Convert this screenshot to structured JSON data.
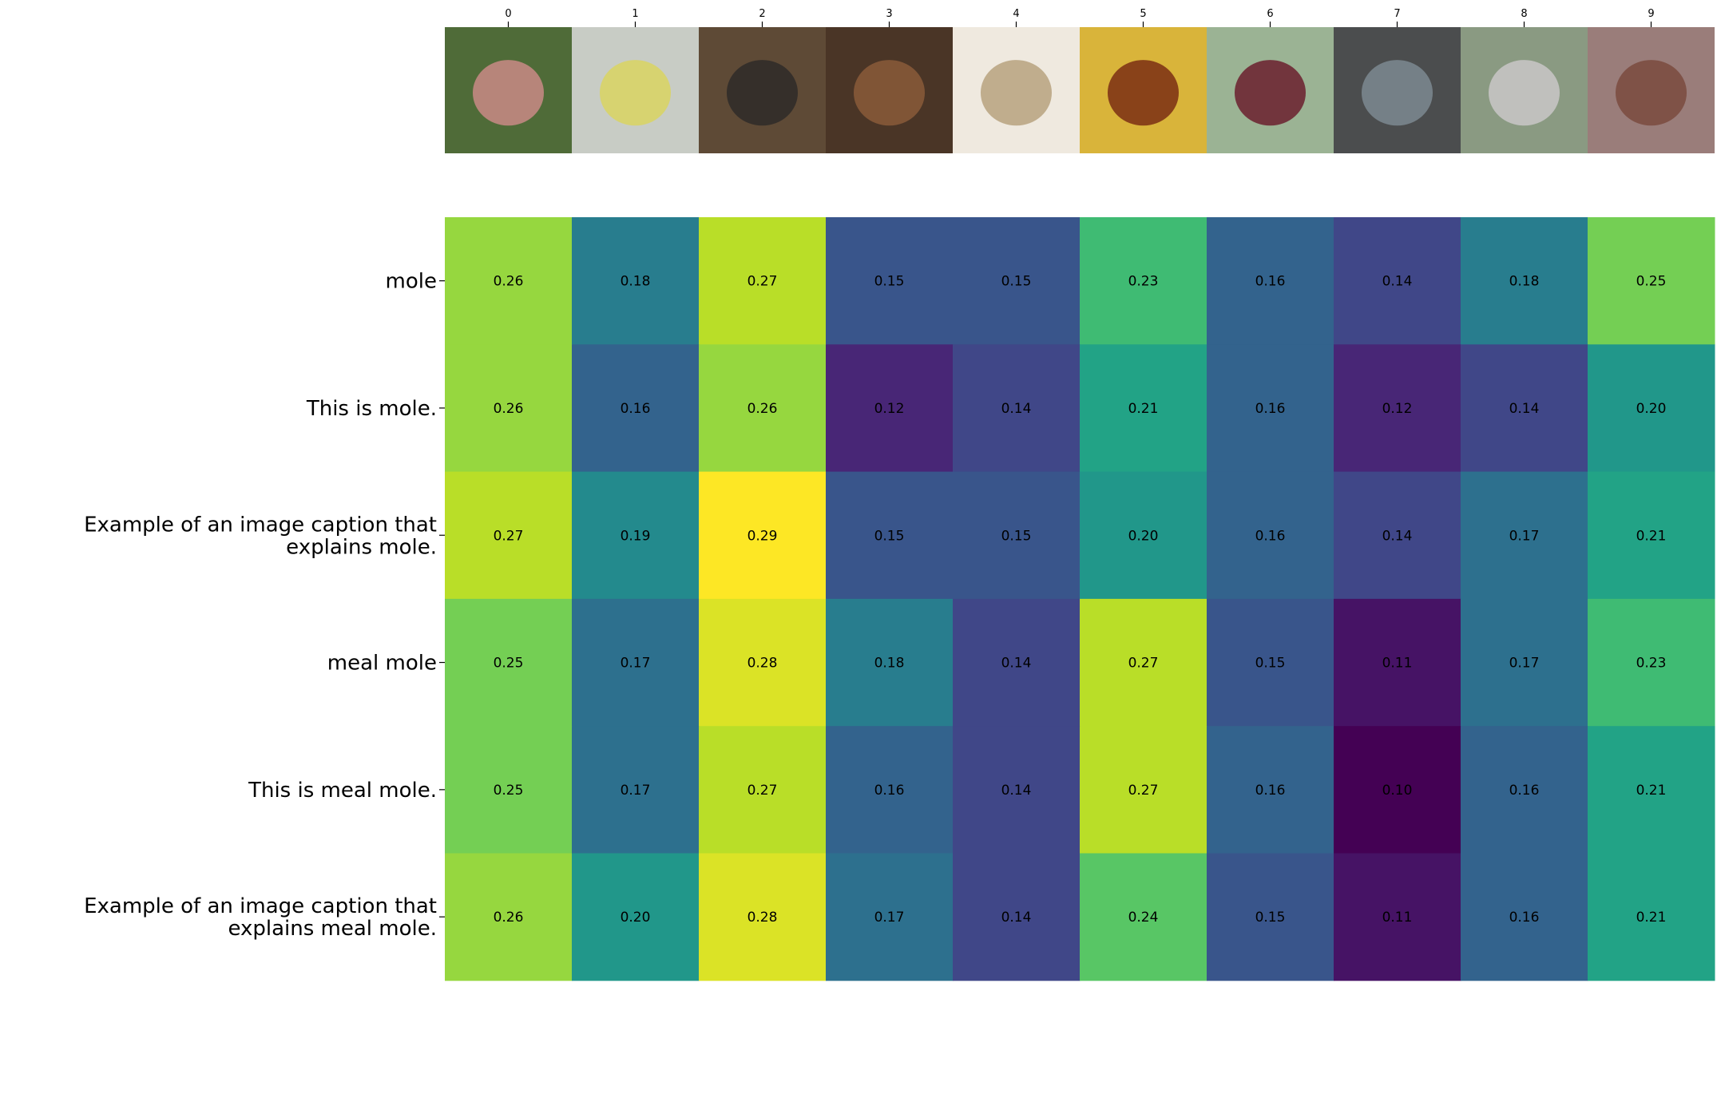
{
  "chart_data": {
    "type": "heatmap",
    "title": "",
    "xlabel": "",
    "ylabel": "",
    "x_tick_position": "top",
    "colormap": "viridis",
    "color_range": [
      0.1,
      0.29
    ],
    "columns": [
      "0",
      "1",
      "2",
      "3",
      "4",
      "5",
      "6",
      "7",
      "8",
      "9"
    ],
    "column_images": [
      {
        "icon": "mole-animal-photo",
        "bg": "#4f6b38",
        "accent": "#c98a86"
      },
      {
        "icon": "citrus-fruit-photo",
        "bg": "#c8ccc5",
        "accent": "#d9d460"
      },
      {
        "icon": "mole-on-soil-photo",
        "bg": "#5e4a36",
        "accent": "#2e2a28"
      },
      {
        "icon": "market-painting-photo",
        "bg": "#4a3526",
        "accent": "#8a5a3a"
      },
      {
        "icon": "coffee-sack-photo",
        "bg": "#efe9df",
        "accent": "#b7a27f"
      },
      {
        "icon": "mole-sauce-dish-photo",
        "bg": "#d9b43a",
        "accent": "#7a2e14"
      },
      {
        "icon": "glass-mug-tea-photo",
        "bg": "#9bb394",
        "accent": "#6b1f2e"
      },
      {
        "icon": "harbor-aerial-photo",
        "bg": "#4b4d4e",
        "accent": "#7d8a92"
      },
      {
        "icon": "tall-grass-photo",
        "bg": "#8a9a82",
        "accent": "#c9c7c8"
      },
      {
        "icon": "skin-mole-photo",
        "bg": "#9a7d7a",
        "accent": "#7a4a3e"
      }
    ],
    "rows": [
      "mole",
      "This is mole.",
      "Example of an image caption that explains mole.",
      "meal mole",
      "This is meal mole.",
      "Example of an image caption that explains meal mole."
    ],
    "values": [
      [
        0.26,
        0.18,
        0.27,
        0.15,
        0.15,
        0.23,
        0.16,
        0.14,
        0.18,
        0.25
      ],
      [
        0.26,
        0.16,
        0.26,
        0.12,
        0.14,
        0.21,
        0.16,
        0.12,
        0.14,
        0.2
      ],
      [
        0.27,
        0.19,
        0.29,
        0.15,
        0.15,
        0.2,
        0.16,
        0.14,
        0.17,
        0.21
      ],
      [
        0.25,
        0.17,
        0.28,
        0.18,
        0.14,
        0.27,
        0.15,
        0.11,
        0.17,
        0.23
      ],
      [
        0.25,
        0.17,
        0.27,
        0.16,
        0.14,
        0.27,
        0.16,
        0.1,
        0.16,
        0.21
      ],
      [
        0.26,
        0.2,
        0.28,
        0.17,
        0.14,
        0.24,
        0.15,
        0.11,
        0.16,
        0.21
      ]
    ],
    "value_format": "2-decimal",
    "cell_text_color": "#000000"
  }
}
